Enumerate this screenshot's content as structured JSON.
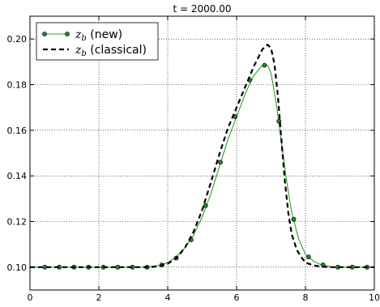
{
  "chart_data": {
    "type": "line",
    "title": "t = 2000.00",
    "xlabel": "",
    "ylabel": "",
    "xlim": [
      0,
      10
    ],
    "ylim": [
      0.09,
      0.21
    ],
    "xticks": [
      0,
      2,
      4,
      6,
      8,
      10
    ],
    "xtick_labels": [
      "0",
      "2",
      "4",
      "6",
      "8",
      "10"
    ],
    "yticks": [
      0.1,
      0.12,
      0.14,
      0.16,
      0.18,
      0.2
    ],
    "ytick_labels": [
      "0.10",
      "0.12",
      "0.14",
      "0.16",
      "0.18",
      "0.20"
    ],
    "grid": true,
    "legend_position": "top-left",
    "series": [
      {
        "name": "z_b (new)",
        "legend_symbol": "z",
        "legend_subscript": "b",
        "legend_suffix": "(new)",
        "style": "solid-with-markers",
        "color": "#2ca02c",
        "marker_color": "#2e7d32",
        "x": [
          0.0,
          0.25,
          0.5,
          0.75,
          1.0,
          1.25,
          1.5,
          1.75,
          2.0,
          2.25,
          2.5,
          2.75,
          3.0,
          3.25,
          3.5,
          3.75,
          4.0,
          4.25,
          4.5,
          4.75,
          5.0,
          5.25,
          5.5,
          5.75,
          6.0,
          6.25,
          6.5,
          6.75,
          6.9,
          7.0,
          7.15,
          7.3,
          7.45,
          7.6,
          7.8,
          8.0,
          8.25,
          8.5,
          8.75,
          9.0,
          9.5,
          10.0
        ],
        "y": [
          0.1,
          0.1,
          0.1,
          0.1,
          0.1,
          0.1,
          0.1,
          0.1,
          0.1,
          0.1,
          0.1,
          0.1,
          0.1,
          0.1,
          0.1003,
          0.1008,
          0.102,
          0.1045,
          0.1085,
          0.114,
          0.122,
          0.132,
          0.144,
          0.156,
          0.166,
          0.176,
          0.184,
          0.1885,
          0.1885,
          0.185,
          0.172,
          0.155,
          0.138,
          0.124,
          0.1125,
          0.1055,
          0.1025,
          0.1008,
          0.1002,
          0.1,
          0.1,
          0.1
        ],
        "marker_x": [
          0.43,
          0.85,
          1.28,
          1.7,
          2.13,
          2.55,
          2.98,
          3.4,
          3.83,
          4.25,
          4.68,
          5.1,
          5.53,
          5.96,
          6.38,
          6.81,
          7.23,
          7.66,
          8.09,
          8.51,
          8.94,
          9.36,
          9.79
        ],
        "marker_y": [
          0.1,
          0.1,
          0.1,
          0.1,
          0.1,
          0.1,
          0.1,
          0.1,
          0.101,
          0.104,
          0.112,
          0.127,
          0.146,
          0.166,
          0.182,
          0.1885,
          0.164,
          0.121,
          0.1045,
          0.101,
          0.1,
          0.1,
          0.1
        ]
      },
      {
        "name": "z_b (classical)",
        "legend_symbol": "z",
        "legend_subscript": "b",
        "legend_suffix": "(classical)",
        "style": "dashed",
        "color": "#000000",
        "x": [
          0.0,
          0.5,
          1.0,
          1.5,
          2.0,
          2.5,
          3.0,
          3.5,
          3.75,
          4.0,
          4.25,
          4.5,
          4.75,
          5.0,
          5.25,
          5.5,
          5.75,
          6.0,
          6.25,
          6.5,
          6.75,
          6.9,
          7.0,
          7.1,
          7.2,
          7.3,
          7.4,
          7.5,
          7.6,
          7.75,
          7.9,
          8.0,
          8.25,
          8.5,
          8.75,
          9.0,
          9.5,
          10.0
        ],
        "y": [
          0.1,
          0.1,
          0.1,
          0.1,
          0.1,
          0.1,
          0.1,
          0.1,
          0.1005,
          0.1015,
          0.104,
          0.1085,
          0.1155,
          0.125,
          0.137,
          0.1495,
          0.161,
          0.17,
          0.179,
          0.188,
          0.1955,
          0.1975,
          0.196,
          0.189,
          0.175,
          0.156,
          0.138,
          0.124,
          0.1145,
          0.1075,
          0.104,
          0.102,
          0.1007,
          0.1002,
          0.1,
          0.1,
          0.1,
          0.1
        ]
      }
    ]
  }
}
